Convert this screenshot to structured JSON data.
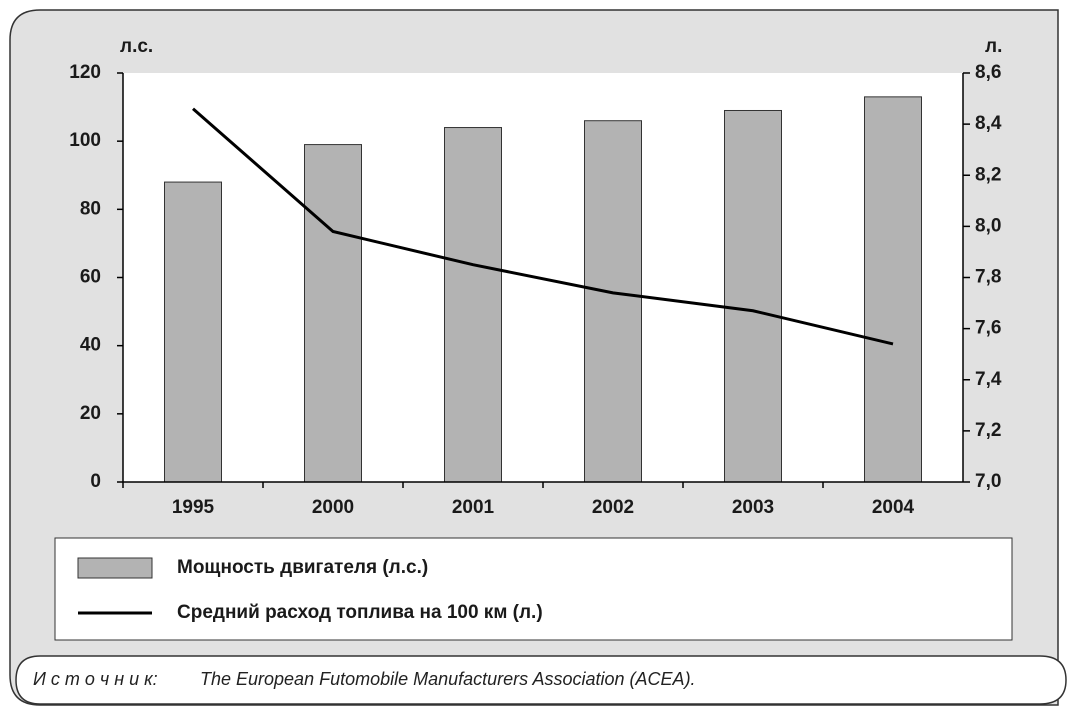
{
  "chart_data": {
    "type": "bar",
    "categories": [
      "1995",
      "2000",
      "2001",
      "2002",
      "2003",
      "2004"
    ],
    "series": [
      {
        "name": "Мощность двигателя (л.с.)",
        "type": "bar",
        "color": "#b3b3b3",
        "values": [
          88,
          99,
          104,
          106,
          109,
          113
        ]
      },
      {
        "name": "Средний расход топлива на 100 км (л.)",
        "type": "line",
        "axis": "y2",
        "color": "#000000",
        "values": [
          8.46,
          7.98,
          7.85,
          7.74,
          7.67,
          7.54
        ]
      }
    ],
    "y_label": "л.с.",
    "y2_label": "л.",
    "ylim": [
      0,
      120
    ],
    "yticks": [
      0,
      20,
      40,
      60,
      80,
      100,
      120
    ],
    "y2lim": [
      7.0,
      8.6
    ],
    "y2ticks": [
      {
        "value": 7.0,
        "label": "7,0"
      },
      {
        "value": 7.2,
        "label": "7,2"
      },
      {
        "value": 7.4,
        "label": "7,4"
      },
      {
        "value": 7.6,
        "label": "7,6"
      },
      {
        "value": 7.8,
        "label": "7,8"
      },
      {
        "value": 8.0,
        "label": "8,0"
      },
      {
        "value": 8.2,
        "label": "8,2"
      },
      {
        "value": 8.4,
        "label": "8,4"
      },
      {
        "value": 8.6,
        "label": "8,6"
      }
    ],
    "source_label": "И с т о ч н и к:",
    "source": "The European Futomobile Manufacturers Association (ACEA)."
  }
}
